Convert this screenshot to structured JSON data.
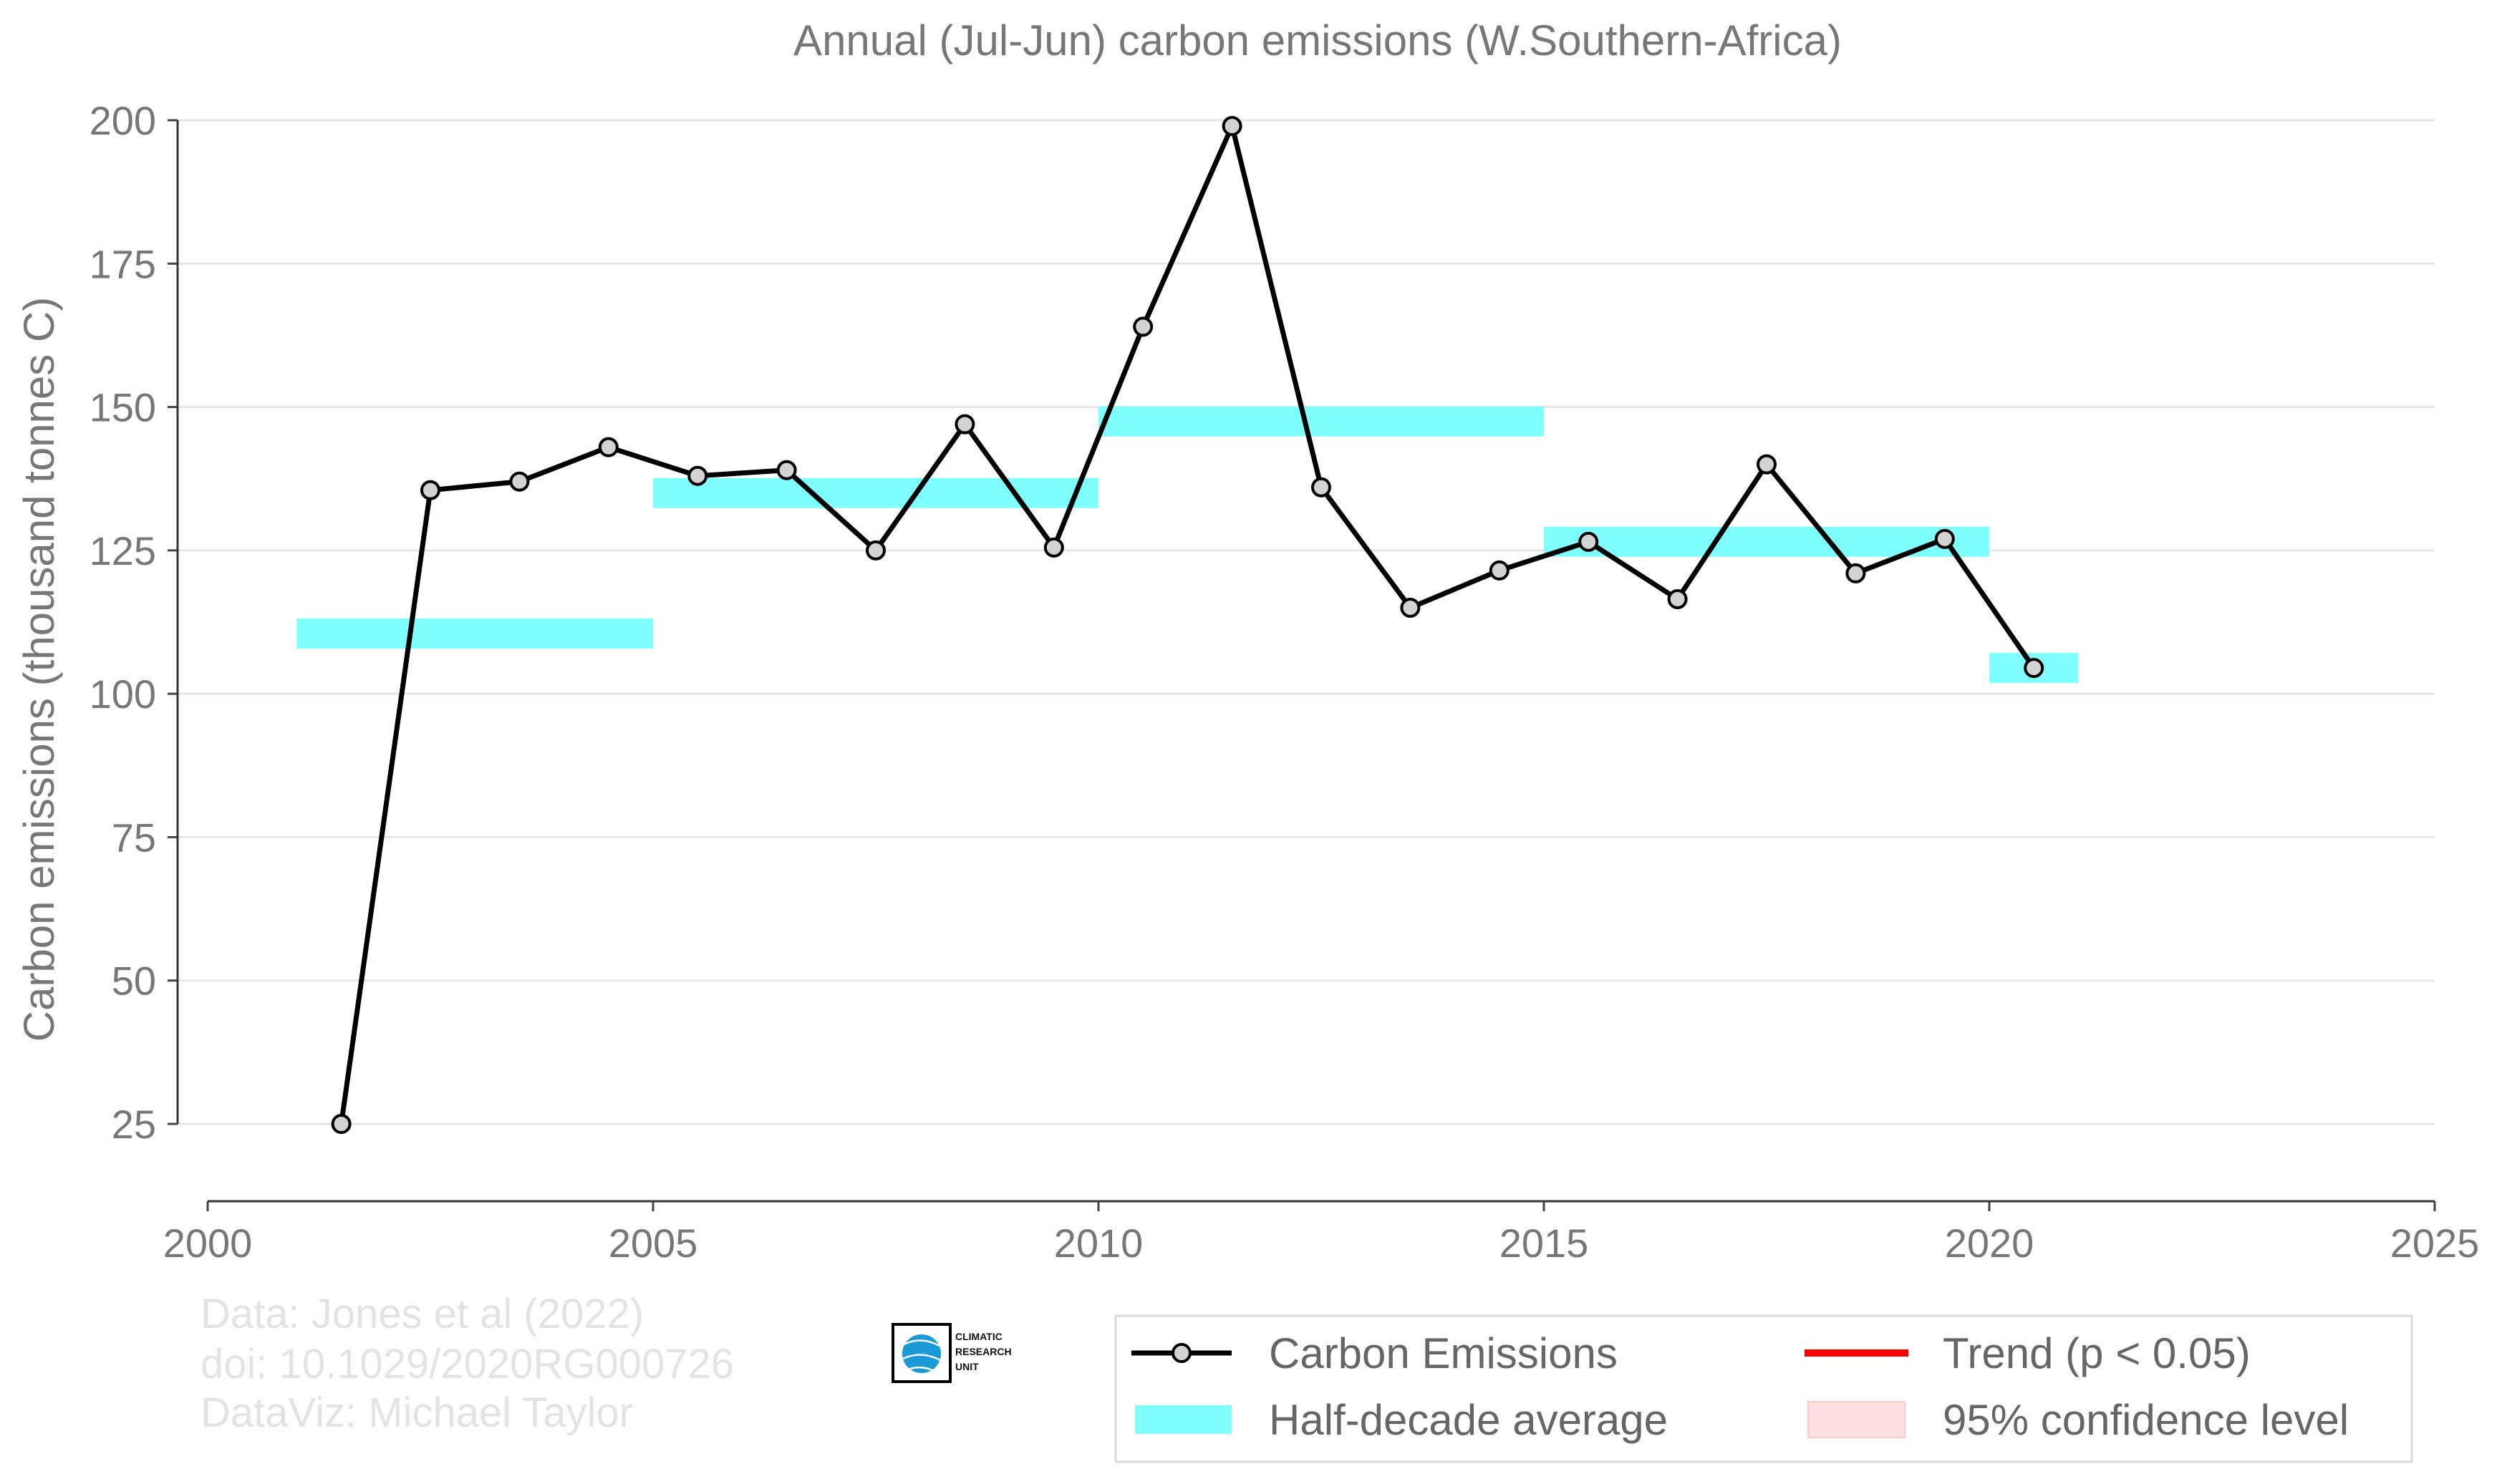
{
  "chart_data": {
    "type": "line",
    "title": "Annual (Jul-Jun) carbon emissions (W.Southern-Africa)",
    "xlabel": "",
    "ylabel": "Carbon emissions (thousand tonnes C)",
    "xlim": [
      2000,
      2025
    ],
    "ylim": [
      12,
      205
    ],
    "x_ticks": [
      2000,
      2005,
      2010,
      2015,
      2020,
      2025
    ],
    "y_ticks": [
      25,
      50,
      75,
      100,
      125,
      150,
      175,
      200
    ],
    "grid": "horizontal",
    "legend_position": "bottom-right",
    "series": [
      {
        "name": "Carbon Emissions",
        "color": "#000000",
        "marker_fill": "#d3d3d3",
        "x": [
          2001.5,
          2002.5,
          2003.5,
          2004.5,
          2005.5,
          2006.5,
          2007.5,
          2008.5,
          2009.5,
          2010.5,
          2011.5,
          2012.5,
          2013.5,
          2014.5,
          2015.5,
          2016.5,
          2017.5,
          2018.5,
          2019.5,
          2020.5
        ],
        "values": [
          25,
          135.5,
          137,
          143,
          138,
          139,
          125,
          147,
          125.5,
          164,
          199,
          136,
          115,
          121.5,
          126.5,
          116.5,
          140,
          121,
          127,
          104.5
        ]
      }
    ],
    "half_decade_average": {
      "name": "Half-decade average",
      "color": "#80ffff",
      "segments": [
        {
          "x0": 2001,
          "x1": 2005,
          "value": 110.5
        },
        {
          "x0": 2005,
          "x1": 2010,
          "value": 135
        },
        {
          "x0": 2010,
          "x1": 2015,
          "value": 147.5
        },
        {
          "x0": 2015,
          "x1": 2020,
          "value": 126.5
        },
        {
          "x0": 2020,
          "x1": 2021,
          "value": 104.5
        }
      ]
    },
    "legend": [
      {
        "label": "Carbon Emissions",
        "kind": "line-marker",
        "color": "#000000"
      },
      {
        "label": "Trend (p < 0.05)",
        "kind": "line",
        "color": "#ff0000"
      },
      {
        "label": "Half-decade average",
        "kind": "band",
        "color": "#80ffff"
      },
      {
        "label": "95% confidence level",
        "kind": "band",
        "color": "#ffdfe0"
      }
    ]
  },
  "credits": {
    "line1": "Data: Jones et al (2022)",
    "line2": "doi: 10.1029/2020RG000726",
    "line3": "DataViz: Michael Taylor"
  },
  "logo": {
    "line1": "CLIMATIC",
    "line2": "RESEARCH",
    "line3": "UNIT",
    "icon": "globe-icon"
  }
}
